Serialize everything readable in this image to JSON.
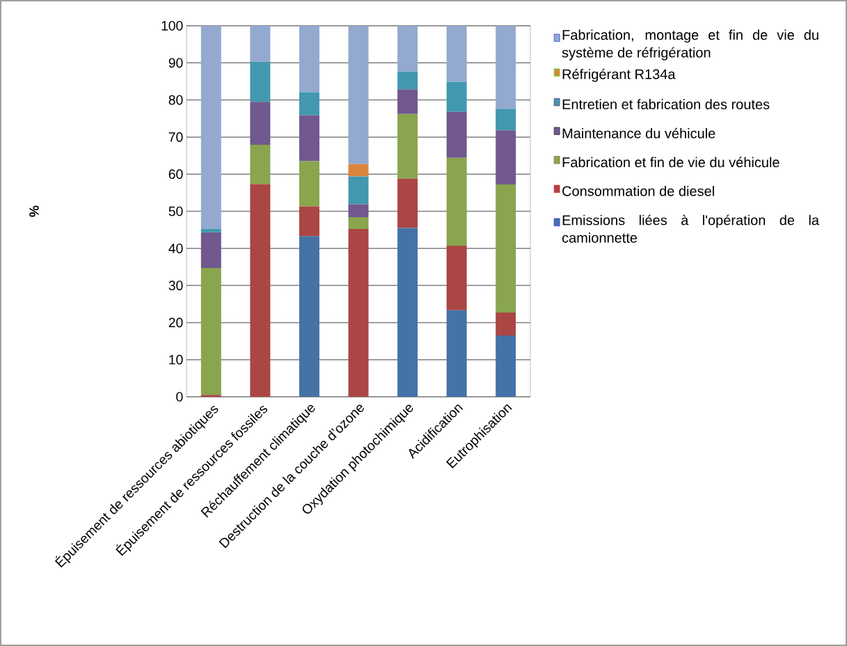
{
  "chart_data": {
    "type": "bar",
    "stacked": true,
    "ylabel": "%",
    "grid": "y",
    "legend": "right",
    "categories": [
      "Épuisement de ressources abiotiques",
      "Épuisement de ressources fossiles",
      "Réchauffement climatique",
      "Destruction de la couche d’ozone",
      "Oxydation photochimique",
      "Acidification",
      "Eutrophisation"
    ],
    "ylim": [
      0,
      100
    ],
    "yticks": [
      0,
      10,
      20,
      30,
      40,
      50,
      60,
      70,
      80,
      90,
      100
    ],
    "series": [
      {
        "name": "Emissions liées à l'opération de la camionnette",
        "color": "#4572a7",
        "values": [
          0,
          0,
          43.3,
          0,
          45.5,
          23.3,
          16.5
        ]
      },
      {
        "name": "Consommation de diesel",
        "color": "#aa4643",
        "values": [
          0.5,
          57.3,
          8.0,
          45.2,
          13.3,
          17.4,
          6.2
        ]
      },
      {
        "name": "Fabrication et fin de vie du véhicule",
        "color": "#89a54e",
        "values": [
          34.2,
          10.6,
          12.2,
          3.2,
          17.4,
          23.7,
          34.5
        ]
      },
      {
        "name": "Maintenance du véhicule",
        "color": "#71588f",
        "values": [
          9.6,
          11.6,
          12.4,
          3.5,
          6.7,
          12.4,
          14.6
        ]
      },
      {
        "name": "Entretien et fabrication des routes",
        "color": "#4198af",
        "values": [
          1.0,
          10.8,
          6.2,
          7.5,
          4.8,
          8.1,
          5.8
        ]
      },
      {
        "name": "Réfrigérant R134a",
        "color": "#db843d",
        "values": [
          0,
          0,
          0,
          3.3,
          0,
          0,
          0
        ]
      },
      {
        "name": "Fabrication, montage et fin de vie du système de réfrigération",
        "color": "#93a9cf",
        "values": [
          54.7,
          9.7,
          17.9,
          37.3,
          12.3,
          15.1,
          22.4
        ]
      }
    ]
  }
}
